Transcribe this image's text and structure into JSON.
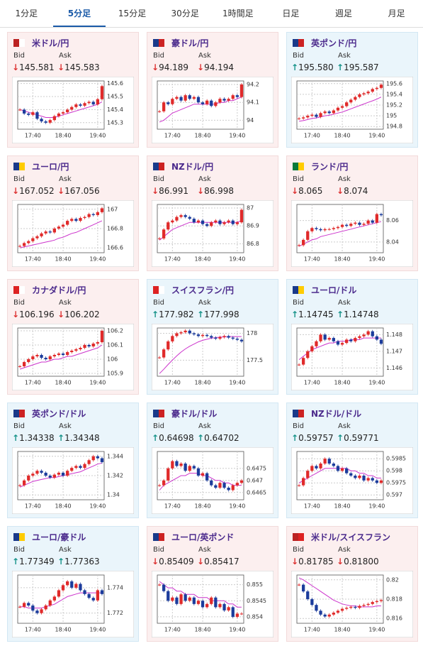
{
  "tabs": [
    "1分足",
    "5分足",
    "15分足",
    "30分足",
    "1時間足",
    "日足",
    "週足",
    "月足"
  ],
  "active_tab": 1,
  "labels": {
    "bid": "Bid",
    "ask": "Ask"
  },
  "chart_categories": [
    null,
    null,
    null,
    "17:40",
    null,
    null,
    null,
    null,
    null,
    null,
    "18:40",
    null,
    null,
    null,
    null,
    null,
    null,
    null,
    "19:40",
    null
  ],
  "cards": [
    {
      "title": "米ドル/円",
      "trend": "down",
      "arrow": "↓",
      "bid": "145.581",
      "ask": "145.583",
      "chart": {
        "ylim": [
          145.25,
          145.62
        ],
        "yticks": [
          145.6,
          145.5,
          145.4,
          145.3
        ],
        "values": [
          145.4,
          145.37,
          145.36,
          145.38,
          145.33,
          145.31,
          145.3,
          145.32,
          145.35,
          145.37,
          145.38,
          145.4,
          145.42,
          145.44,
          145.43,
          145.45,
          145.46,
          145.44,
          145.48,
          145.58
        ],
        "ma": [
          145.4,
          145.39,
          145.38,
          145.37,
          145.36,
          145.35,
          145.34,
          145.34,
          145.34,
          145.35,
          145.36,
          145.37,
          145.38,
          145.39,
          145.4,
          145.41,
          145.42,
          145.43,
          145.44,
          145.46
        ]
      }
    },
    {
      "title": "豪ドル/円",
      "trend": "down",
      "arrow": "↓",
      "bid": "94.189",
      "ask": "94.194",
      "chart": {
        "ylim": [
          93.95,
          94.22
        ],
        "yticks": [
          94.2,
          94.1,
          94
        ],
        "values": [
          94.05,
          94.1,
          94.09,
          94.12,
          94.13,
          94.11,
          94.14,
          94.12,
          94.13,
          94.1,
          94.09,
          94.11,
          94.08,
          94.1,
          94.12,
          94.11,
          94.12,
          94.14,
          94.13,
          94.2
        ],
        "ma": [
          93.99,
          94.0,
          94.02,
          94.04,
          94.05,
          94.06,
          94.07,
          94.08,
          94.09,
          94.09,
          94.09,
          94.09,
          94.09,
          94.09,
          94.1,
          94.1,
          94.11,
          94.11,
          94.12,
          94.13
        ]
      }
    },
    {
      "title": "英ポンド/円",
      "trend": "up",
      "arrow": "↑",
      "bid": "195.580",
      "ask": "195.587",
      "chart": {
        "ylim": [
          194.75,
          195.65
        ],
        "yticks": [
          195.6,
          195.4,
          195.2,
          195,
          194.8
        ],
        "values": [
          194.95,
          194.97,
          195.0,
          195.02,
          194.98,
          195.05,
          195.08,
          195.05,
          195.1,
          195.15,
          195.18,
          195.25,
          195.3,
          195.35,
          195.4,
          195.42,
          195.45,
          195.5,
          195.52,
          195.58
        ],
        "ma": [
          194.9,
          194.91,
          194.93,
          194.95,
          194.96,
          194.98,
          195.0,
          195.01,
          195.03,
          195.05,
          195.07,
          195.1,
          195.13,
          195.16,
          195.19,
          195.22,
          195.25,
          195.28,
          195.31,
          195.35
        ]
      }
    },
    {
      "title": "ユーロ/円",
      "trend": "down",
      "arrow": "↓",
      "bid": "167.052",
      "ask": "167.056",
      "chart": {
        "ylim": [
          166.55,
          167.05
        ],
        "yticks": [
          167,
          166.8,
          166.6
        ],
        "values": [
          166.62,
          166.65,
          166.67,
          166.7,
          166.72,
          166.75,
          166.77,
          166.76,
          166.8,
          166.82,
          166.84,
          166.88,
          166.9,
          166.88,
          166.91,
          166.92,
          166.95,
          166.94,
          166.97,
          167.01
        ],
        "ma": [
          166.6,
          166.61,
          166.62,
          166.63,
          166.64,
          166.65,
          166.66,
          166.67,
          166.68,
          166.7,
          166.71,
          166.73,
          166.75,
          166.76,
          166.78,
          166.8,
          166.82,
          166.84,
          166.86,
          166.88
        ]
      }
    },
    {
      "title": "NZドル/円",
      "trend": "down",
      "arrow": "↓",
      "bid": "86.991",
      "ask": "86.998",
      "chart": {
        "ylim": [
          86.75,
          87.02
        ],
        "yticks": [
          87,
          86.9,
          86.8
        ],
        "values": [
          86.83,
          86.88,
          86.92,
          86.93,
          86.95,
          86.96,
          86.95,
          86.94,
          86.92,
          86.93,
          86.91,
          86.9,
          86.92,
          86.93,
          86.91,
          86.92,
          86.93,
          86.91,
          86.92,
          86.99
        ],
        "ma": [
          86.82,
          86.84,
          86.86,
          86.88,
          86.89,
          86.9,
          86.91,
          86.92,
          86.92,
          86.92,
          86.92,
          86.92,
          86.92,
          86.92,
          86.92,
          86.92,
          86.92,
          86.92,
          86.92,
          86.93
        ]
      }
    },
    {
      "title": "ランド/円",
      "trend": "down",
      "arrow": "↓",
      "bid": "8.065",
      "ask": "8.074",
      "chart": {
        "ylim": [
          8.03,
          8.075
        ],
        "yticks": [
          8.06,
          8.04
        ],
        "values": [
          8.037,
          8.042,
          8.05,
          8.053,
          8.052,
          8.051,
          8.052,
          8.052,
          8.053,
          8.054,
          8.056,
          8.055,
          8.057,
          8.058,
          8.056,
          8.057,
          8.06,
          8.058,
          8.066,
          8.065
        ],
        "ma": [
          8.036,
          8.038,
          8.04,
          8.042,
          8.043,
          8.045,
          8.046,
          8.047,
          8.048,
          8.049,
          8.05,
          8.051,
          8.052,
          8.053,
          8.054,
          8.055,
          8.056,
          8.057,
          8.058,
          8.059
        ]
      }
    },
    {
      "title": "カナダドル/円",
      "trend": "down",
      "arrow": "↓",
      "bid": "106.196",
      "ask": "106.202",
      "chart": {
        "ylim": [
          105.88,
          106.22
        ],
        "yticks": [
          106.2,
          106.1,
          106,
          105.9
        ],
        "values": [
          105.95,
          105.98,
          106.0,
          106.02,
          106.03,
          106.01,
          106.0,
          106.02,
          106.03,
          106.04,
          106.03,
          106.05,
          106.06,
          106.07,
          106.08,
          106.1,
          106.09,
          106.11,
          106.12,
          106.2
        ],
        "ma": [
          105.93,
          105.94,
          105.95,
          105.96,
          105.97,
          105.98,
          105.98,
          105.99,
          106.0,
          106.0,
          106.01,
          106.02,
          106.02,
          106.03,
          106.04,
          106.05,
          106.06,
          106.07,
          106.08,
          106.1
        ]
      }
    },
    {
      "title": "スイスフラン/円",
      "trend": "up",
      "arrow": "↑",
      "bid": "177.982",
      "ask": "177.998",
      "chart": {
        "ylim": [
          177.2,
          178.1
        ],
        "yticks": [
          178,
          177.5
        ],
        "values": [
          177.55,
          177.7,
          177.85,
          177.95,
          178.0,
          178.02,
          178.05,
          178.0,
          177.98,
          177.95,
          177.97,
          177.95,
          177.92,
          177.9,
          177.93,
          177.95,
          177.92,
          177.9,
          177.88,
          177.85
        ],
        "ma": [
          177.25,
          177.33,
          177.42,
          177.5,
          177.58,
          177.65,
          177.71,
          177.76,
          177.8,
          177.84,
          177.87,
          177.89,
          177.91,
          177.92,
          177.93,
          177.93,
          177.94,
          177.94,
          177.94,
          177.94
        ]
      }
    },
    {
      "title": "ユーロ/ドル",
      "trend": "up",
      "arrow": "↑",
      "bid": "1.14745",
      "ask": "1.14748",
      "chart": {
        "ylim": [
          1.1455,
          1.1484
        ],
        "yticks": [
          1.148,
          1.147,
          1.146
        ],
        "values": [
          1.1462,
          1.1466,
          1.147,
          1.1473,
          1.1476,
          1.148,
          1.1477,
          1.1478,
          1.1476,
          1.1474,
          1.1475,
          1.1477,
          1.1476,
          1.1478,
          1.1479,
          1.148,
          1.1482,
          1.1479,
          1.1477,
          1.14745
        ],
        "ma": [
          1.1465,
          1.1467,
          1.1469,
          1.1471,
          1.1472,
          1.1473,
          1.1474,
          1.1475,
          1.1475,
          1.1476,
          1.1476,
          1.1476,
          1.1477,
          1.1477,
          1.1477,
          1.1478,
          1.1478,
          1.1478,
          1.1478,
          1.1478
        ]
      }
    },
    {
      "title": "英ポンド/ドル",
      "trend": "up",
      "arrow": "↑",
      "bid": "1.34338",
      "ask": "1.34348",
      "chart": {
        "ylim": [
          1.3395,
          1.3445
        ],
        "yticks": [
          1.344,
          1.342,
          1.34
        ],
        "values": [
          1.341,
          1.3415,
          1.342,
          1.3422,
          1.3425,
          1.3423,
          1.342,
          1.3418,
          1.3421,
          1.3423,
          1.342,
          1.3425,
          1.3428,
          1.343,
          1.3428,
          1.3432,
          1.3436,
          1.344,
          1.3438,
          1.3434
        ],
        "ma": [
          1.3408,
          1.341,
          1.3412,
          1.3414,
          1.3415,
          1.3416,
          1.3417,
          1.3418,
          1.3418,
          1.3419,
          1.342,
          1.3421,
          1.3422,
          1.3423,
          1.3424,
          1.3426,
          1.3428,
          1.343,
          1.3432,
          1.3433
        ]
      }
    },
    {
      "title": "豪ドル/ドル",
      "trend": "up",
      "arrow": "↑",
      "bid": "0.64698",
      "ask": "0.64702",
      "chart": {
        "ylim": [
          0.6462,
          0.6482
        ],
        "yticks": [
          0.6475,
          0.647,
          0.6465
        ],
        "values": [
          0.6468,
          0.647,
          0.6475,
          0.6478,
          0.6476,
          0.6477,
          0.6474,
          0.6476,
          0.6475,
          0.6472,
          0.6473,
          0.647,
          0.6468,
          0.6467,
          0.6469,
          0.6467,
          0.6466,
          0.6468,
          0.6469,
          0.647
        ],
        "ma": [
          0.6466,
          0.6468,
          0.6469,
          0.647,
          0.6471,
          0.6472,
          0.6472,
          0.6473,
          0.6473,
          0.6473,
          0.6472,
          0.6472,
          0.6471,
          0.647,
          0.647,
          0.6469,
          0.6469,
          0.6468,
          0.6468,
          0.6468
        ]
      }
    },
    {
      "title": "NZドル/ドル",
      "trend": "up",
      "arrow": "↑",
      "bid": "0.59757",
      "ask": "0.59771",
      "chart": {
        "ylim": [
          0.5968,
          0.5988
        ],
        "yticks": [
          0.5985,
          0.598,
          0.5975,
          0.597
        ],
        "values": [
          0.5974,
          0.5977,
          0.598,
          0.5982,
          0.5981,
          0.5983,
          0.5985,
          0.5983,
          0.5982,
          0.598,
          0.5981,
          0.5979,
          0.5978,
          0.5977,
          0.5978,
          0.5976,
          0.5977,
          0.5976,
          0.5975,
          0.5976
        ],
        "ma": [
          0.5975,
          0.5976,
          0.5977,
          0.5978,
          0.5979,
          0.598,
          0.5981,
          0.5981,
          0.5981,
          0.5981,
          0.5981,
          0.5981,
          0.598,
          0.598,
          0.5979,
          0.5979,
          0.5978,
          0.5978,
          0.5977,
          0.5977
        ]
      }
    },
    {
      "title": "ユーロ/豪ドル",
      "trend": "up",
      "arrow": "↑",
      "bid": "1.77349",
      "ask": "1.77363",
      "chart": {
        "ylim": [
          1.7712,
          1.775
        ],
        "yticks": [
          1.774,
          1.772
        ],
        "values": [
          1.7725,
          1.7728,
          1.7726,
          1.7722,
          1.772,
          1.7723,
          1.7726,
          1.773,
          1.7733,
          1.7738,
          1.7742,
          1.7745,
          1.774,
          1.7743,
          1.7738,
          1.7735,
          1.7732,
          1.773,
          1.7738,
          1.7735
        ],
        "ma": [
          1.7725,
          1.7725,
          1.7724,
          1.7724,
          1.7724,
          1.7724,
          1.7725,
          1.7726,
          1.7727,
          1.7729,
          1.7731,
          1.7733,
          1.7734,
          1.7735,
          1.7736,
          1.7736,
          1.7736,
          1.7736,
          1.7736,
          1.7736
        ]
      }
    },
    {
      "title": "ユーロ/英ポンド",
      "trend": "down",
      "arrow": "↓",
      "bid": "0.85409",
      "ask": "0.85417",
      "chart": {
        "ylim": [
          0.8538,
          0.8553
        ],
        "yticks": [
          0.855,
          0.8545,
          0.854
        ],
        "values": [
          0.855,
          0.8548,
          0.8545,
          0.8546,
          0.8544,
          0.8547,
          0.8545,
          0.8546,
          0.8544,
          0.8545,
          0.8543,
          0.8544,
          0.8546,
          0.8543,
          0.8544,
          0.8542,
          0.8543,
          0.854,
          0.8541,
          0.8541
        ],
        "ma": [
          0.8551,
          0.855,
          0.8549,
          0.8549,
          0.8548,
          0.8548,
          0.8547,
          0.8547,
          0.8547,
          0.8546,
          0.8546,
          0.8546,
          0.8545,
          0.8545,
          0.8545,
          0.8545,
          0.8544,
          0.8544,
          0.8543,
          0.8543
        ]
      }
    },
    {
      "title": "米ドル/スイスフラン",
      "trend": "down",
      "arrow": "↓",
      "bid": "0.81785",
      "ask": "0.81800",
      "chart": {
        "ylim": [
          0.8155,
          0.8205
        ],
        "yticks": [
          0.82,
          0.818,
          0.816
        ],
        "values": [
          0.8195,
          0.8188,
          0.818,
          0.8174,
          0.8168,
          0.8164,
          0.8162,
          0.8164,
          0.8166,
          0.8168,
          0.817,
          0.8171,
          0.8172,
          0.8171,
          0.8173,
          0.8174,
          0.8175,
          0.8177,
          0.8178,
          0.8179
        ],
        "ma": [
          0.8202,
          0.82,
          0.8197,
          0.8194,
          0.8191,
          0.8188,
          0.8185,
          0.8182,
          0.8179,
          0.8177,
          0.8175,
          0.8174,
          0.8173,
          0.8173,
          0.8172,
          0.8172,
          0.8172,
          0.8172,
          0.8173,
          0.8173
        ]
      }
    }
  ]
}
